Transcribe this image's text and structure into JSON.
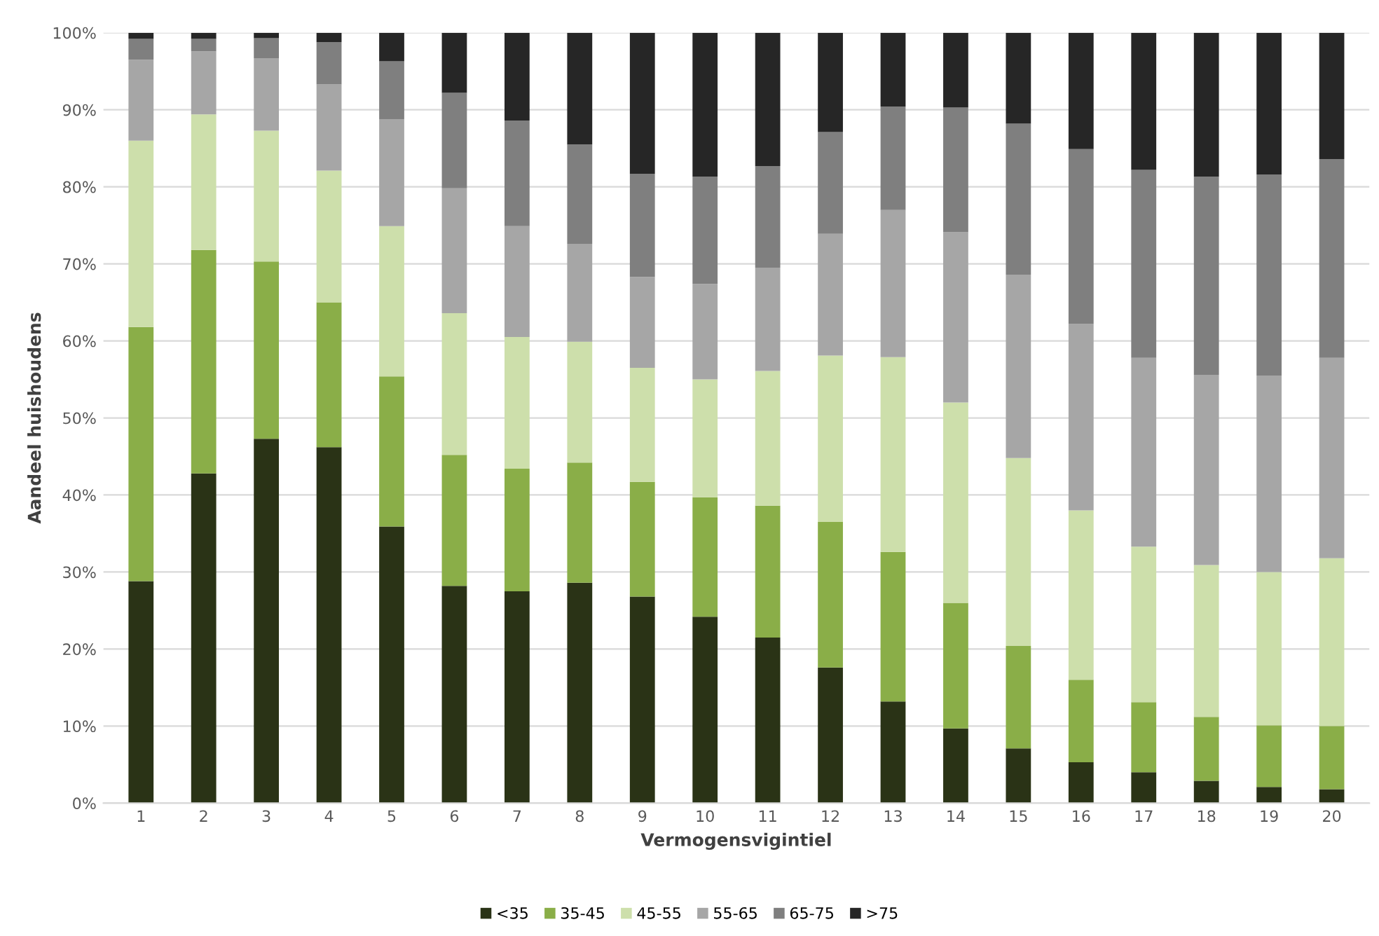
{
  "chart_data": {
    "type": "bar",
    "stacked": true,
    "xlabel": "Vermogensvigintiel",
    "ylabel": "Aandeel huishoudens",
    "categories": [
      "1",
      "2",
      "3",
      "4",
      "5",
      "6",
      "7",
      "8",
      "9",
      "10",
      "11",
      "12",
      "13",
      "14",
      "15",
      "16",
      "17",
      "18",
      "19",
      "20"
    ],
    "series": [
      {
        "name": "<35",
        "color": "#2a3316",
        "values": [
          28.8,
          42.8,
          47.3,
          46.2,
          35.9,
          28.2,
          27.5,
          28.6,
          26.8,
          24.2,
          21.5,
          17.6,
          13.2,
          9.7,
          7.1,
          5.3,
          4.0,
          2.9,
          2.1,
          1.8
        ]
      },
      {
        "name": "35-45",
        "color": "#8aae48",
        "values": [
          33.0,
          29.0,
          23.0,
          18.8,
          19.5,
          17.0,
          15.9,
          15.6,
          14.9,
          15.5,
          17.1,
          18.9,
          19.4,
          16.3,
          13.3,
          10.7,
          9.1,
          8.3,
          8.0,
          8.2
        ]
      },
      {
        "name": "45-55",
        "color": "#cddfab",
        "values": [
          24.2,
          17.6,
          17.0,
          17.1,
          19.5,
          18.4,
          17.1,
          15.7,
          14.8,
          15.3,
          17.5,
          21.6,
          25.3,
          26.0,
          24.4,
          22.0,
          20.2,
          19.7,
          19.9,
          21.8
        ]
      },
      {
        "name": "55-65",
        "color": "#a6a6a6",
        "values": [
          10.5,
          8.2,
          9.4,
          11.2,
          13.9,
          16.2,
          14.4,
          12.7,
          11.8,
          12.4,
          13.4,
          15.8,
          19.1,
          22.1,
          23.8,
          24.2,
          24.5,
          24.7,
          25.5,
          26.0
        ]
      },
      {
        "name": "65-75",
        "color": "#7f7f7f",
        "values": [
          2.7,
          1.6,
          2.6,
          5.5,
          7.5,
          12.4,
          13.7,
          12.9,
          13.4,
          13.9,
          13.2,
          13.2,
          13.4,
          16.2,
          19.6,
          22.7,
          24.4,
          25.7,
          26.1,
          25.8
        ]
      },
      {
        "name": ">75",
        "color": "#262626",
        "values": [
          0.8,
          0.8,
          0.7,
          1.2,
          3.7,
          7.8,
          11.4,
          14.5,
          18.3,
          18.7,
          17.3,
          12.9,
          9.6,
          9.7,
          11.8,
          15.1,
          17.8,
          18.7,
          18.4,
          16.4
        ]
      }
    ],
    "ylim": [
      0,
      100
    ],
    "yticks": [
      {
        "value": 0,
        "label": "0%"
      },
      {
        "value": 10,
        "label": "10%"
      },
      {
        "value": 20,
        "label": "20%"
      },
      {
        "value": 30,
        "label": "30%"
      },
      {
        "value": 40,
        "label": "40%"
      },
      {
        "value": 50,
        "label": "50%"
      },
      {
        "value": 60,
        "label": "60%"
      },
      {
        "value": 70,
        "label": "70%"
      },
      {
        "value": 80,
        "label": "80%"
      },
      {
        "value": 90,
        "label": "90%"
      },
      {
        "value": 100,
        "label": "100%"
      }
    ],
    "grid": "y",
    "legend": "bottom"
  }
}
